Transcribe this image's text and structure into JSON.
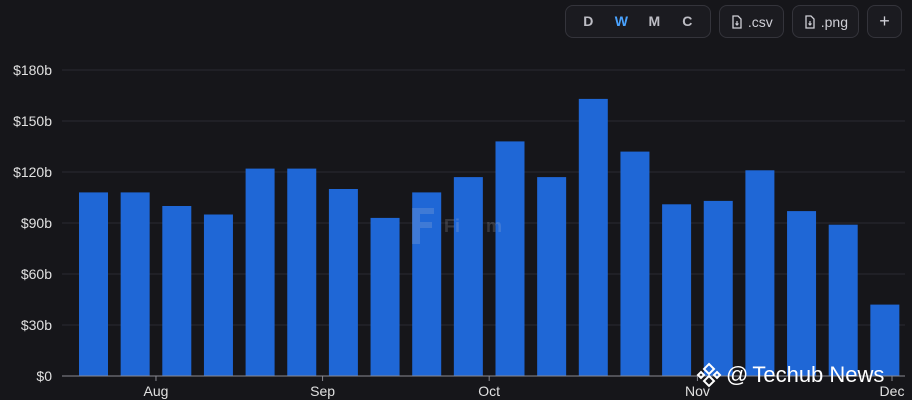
{
  "toolbar": {
    "intervals": [
      "D",
      "W",
      "M",
      "C"
    ],
    "active_interval": "W",
    "csv_label": ".csv",
    "png_label": ".png",
    "add_label": "+"
  },
  "watermarks": {
    "background_logo_text": "Fi",
    "background_logo_text2": "m",
    "news_at": "@",
    "news_name": "Techub News"
  },
  "colors": {
    "bar": "#1f67d6",
    "background": "#16161a",
    "grid": "#2b2b31",
    "axis_text": "#e0e0e0"
  },
  "chart_data": {
    "type": "bar",
    "y_ticks": [
      "$0",
      "$30b",
      "$60b",
      "$90b",
      "$120b",
      "$150b",
      "$180b"
    ],
    "y_tick_values": [
      0,
      30,
      60,
      90,
      120,
      150,
      180
    ],
    "x_tick_labels": [
      "Aug",
      "Sep",
      "Oct",
      "Nov",
      "Dec"
    ],
    "x_tick_after_bar_index": [
      1,
      5,
      9,
      14,
      19
    ],
    "ylim": [
      0,
      180
    ],
    "values": [
      108,
      108,
      100,
      95,
      122,
      122,
      110,
      93,
      108,
      117,
      138,
      117,
      163,
      132,
      101,
      103,
      121,
      97,
      89,
      42
    ]
  }
}
